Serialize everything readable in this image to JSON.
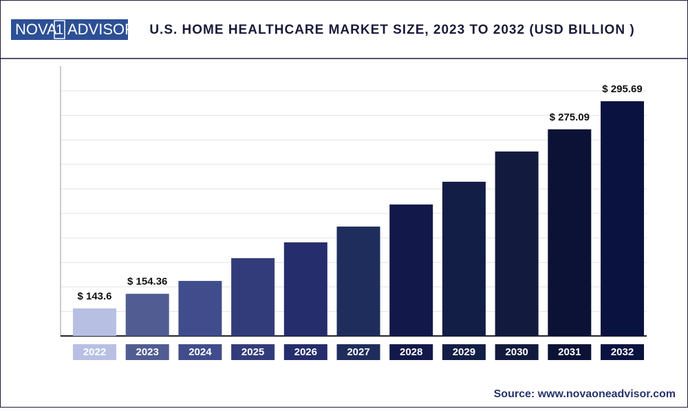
{
  "logo": {
    "left": "NOVA",
    "digit": "1",
    "right": "ADVISOR"
  },
  "source": "Source: www.novaoneadvisor.com",
  "chart_data": {
    "type": "bar",
    "title": "U.S. HOME HEALTHCARE MARKET SIZE, 2023 TO 2032 (USD BILLION )",
    "categories": [
      "2022",
      "2023",
      "2024",
      "2025",
      "2026",
      "2027",
      "2028",
      "2029",
      "2030",
      "2031",
      "2032"
    ],
    "values": [
      143.6,
      154.36,
      163.8,
      180.5,
      192.1,
      203.7,
      219.9,
      236.6,
      258.8,
      275.09,
      295.69
    ],
    "value_labels": [
      "$ 143.6",
      "$ 154.36",
      null,
      null,
      null,
      null,
      null,
      null,
      null,
      "$ 275.09",
      "$ 295.69"
    ],
    "colors": [
      "#b7c0e3",
      "#515c92",
      "#414c8c",
      "#333c7a",
      "#252d6c",
      "#1f2d5c",
      "#12194a",
      "#131e46",
      "#121b3d",
      "#0b1236",
      "#0a1240"
    ],
    "ylim": [
      123.4,
      321.5
    ],
    "grid": true
  }
}
